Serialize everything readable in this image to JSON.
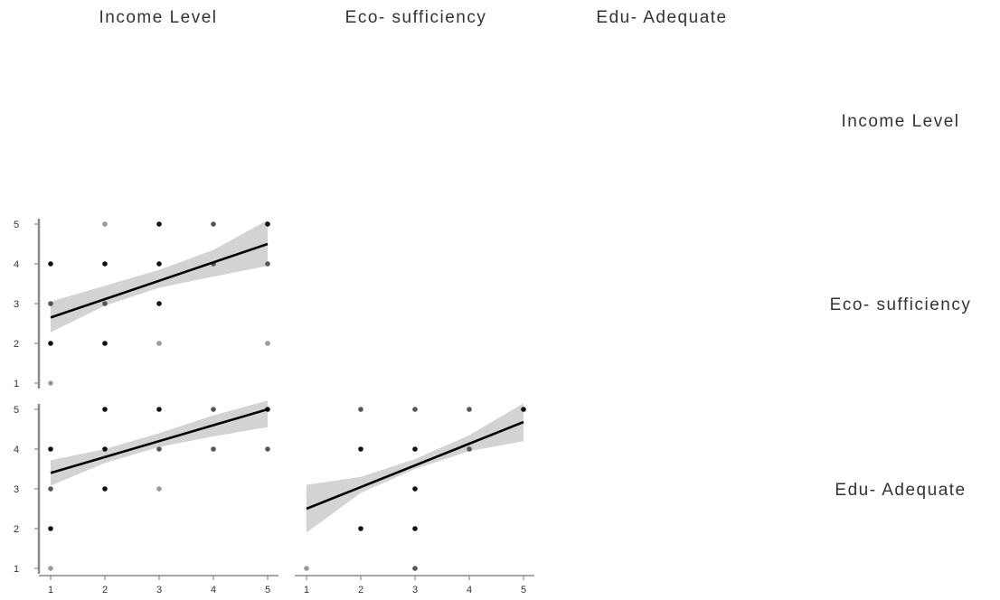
{
  "chart_data": {
    "type": "scatter",
    "layout": "lower-triangular pairs matrix",
    "variables": [
      "Income Level",
      "Eco- sufficiency",
      "Edu- Adequate"
    ],
    "ticks": [
      1,
      2,
      3,
      4,
      5
    ],
    "xlim": [
      1,
      5
    ],
    "ylim": [
      1,
      5
    ],
    "grid": false,
    "panels": [
      {
        "x_var": "Income Level",
        "y_var": "Eco- sufficiency",
        "points": [
          [
            1,
            1,
            "light"
          ],
          [
            1,
            2,
            "dark"
          ],
          [
            1,
            3,
            "mid"
          ],
          [
            1,
            4,
            "dark"
          ],
          [
            2,
            2,
            "dark"
          ],
          [
            2,
            3,
            "mid"
          ],
          [
            2,
            4,
            "dark"
          ],
          [
            2,
            5,
            "light"
          ],
          [
            3,
            2,
            "light"
          ],
          [
            3,
            3,
            "dark"
          ],
          [
            3,
            4,
            "dark"
          ],
          [
            3,
            5,
            "dark"
          ],
          [
            4,
            4,
            "mid"
          ],
          [
            4,
            5,
            "mid"
          ],
          [
            5,
            2,
            "light"
          ],
          [
            5,
            4,
            "mid"
          ],
          [
            5,
            5,
            "dark"
          ]
        ],
        "fit": {
          "x": [
            1,
            5
          ],
          "y": [
            2.65,
            4.5
          ]
        },
        "band": {
          "x": [
            1,
            2,
            3,
            4,
            5
          ],
          "lower": [
            2.28,
            2.95,
            3.4,
            3.68,
            3.95
          ],
          "upper": [
            3.05,
            3.45,
            3.85,
            4.35,
            5.1
          ]
        }
      },
      {
        "x_var": "Income Level",
        "y_var": "Edu- Adequate",
        "points": [
          [
            1,
            1,
            "light"
          ],
          [
            1,
            2,
            "dark"
          ],
          [
            1,
            3,
            "mid"
          ],
          [
            1,
            4,
            "dark"
          ],
          [
            2,
            3,
            "dark"
          ],
          [
            2,
            4,
            "dark"
          ],
          [
            2,
            5,
            "dark"
          ],
          [
            3,
            3,
            "light"
          ],
          [
            3,
            4,
            "mid"
          ],
          [
            3,
            5,
            "dark"
          ],
          [
            4,
            4,
            "mid"
          ],
          [
            4,
            5,
            "mid"
          ],
          [
            5,
            4,
            "mid"
          ],
          [
            5,
            5,
            "dark"
          ]
        ],
        "fit": {
          "x": [
            1,
            5
          ],
          "y": [
            3.4,
            5.0
          ]
        },
        "band": {
          "x": [
            1,
            2,
            3,
            4,
            5
          ],
          "lower": [
            3.08,
            3.65,
            4.05,
            4.32,
            4.55
          ],
          "upper": [
            3.72,
            4.0,
            4.4,
            4.85,
            5.22
          ]
        }
      },
      {
        "x_var": "Eco- sufficiency",
        "y_var": "Edu- Adequate",
        "points": [
          [
            1,
            1,
            "light"
          ],
          [
            2,
            2,
            "dark"
          ],
          [
            2,
            4,
            "dark"
          ],
          [
            2,
            5,
            "mid"
          ],
          [
            3,
            1,
            "mid"
          ],
          [
            3,
            2,
            "dark"
          ],
          [
            3,
            3,
            "dark"
          ],
          [
            3,
            4,
            "dark"
          ],
          [
            3,
            5,
            "mid"
          ],
          [
            4,
            4,
            "mid"
          ],
          [
            4,
            5,
            "mid"
          ],
          [
            5,
            5,
            "dark"
          ]
        ],
        "fit": {
          "x": [
            1,
            5
          ],
          "y": [
            2.5,
            4.68
          ]
        },
        "band": {
          "x": [
            1,
            2,
            3,
            4,
            5
          ],
          "lower": [
            1.9,
            2.9,
            3.5,
            3.95,
            4.2
          ],
          "upper": [
            3.1,
            3.3,
            3.75,
            4.35,
            5.15
          ]
        }
      }
    ]
  },
  "colors": {
    "point_dark": "#111111",
    "point_mid": "#555555",
    "point_light": "#9a9a9a",
    "fit_line": "#000000",
    "band": "#d3d3d3",
    "axis": "#8a8a8a",
    "text": "#333333"
  }
}
